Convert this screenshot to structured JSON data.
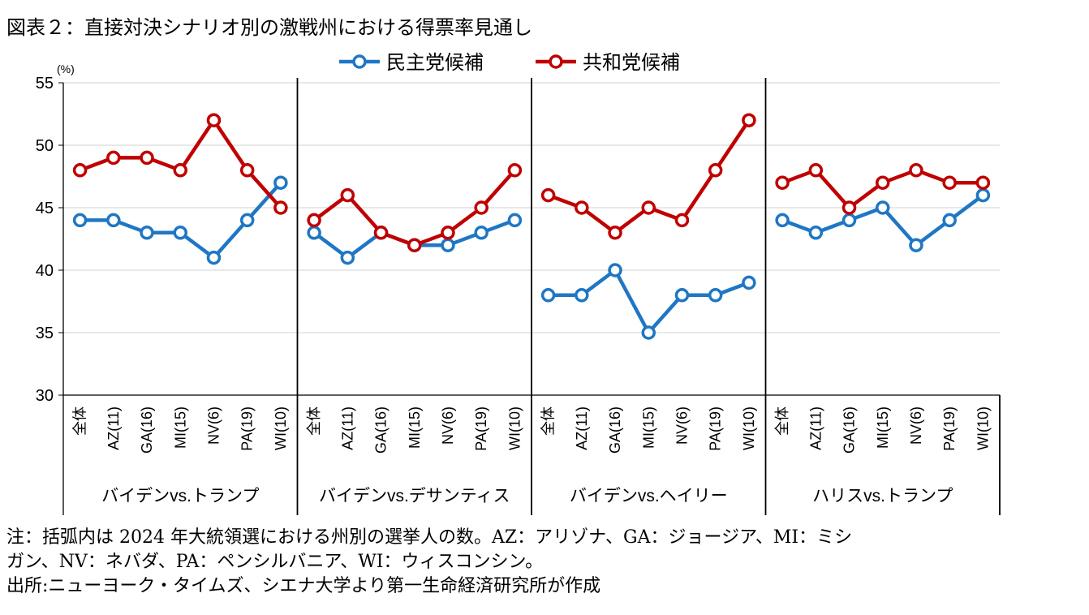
{
  "title": "図表２：直接対決シナリオ別の激戦州における得票率見通し",
  "chart_data": {
    "type": "line",
    "title": "図表２：直接対決シナリオ別の激戦州における得票率見通し",
    "unit_label": "(%)",
    "ylim": [
      30,
      55
    ],
    "yticks": [
      30,
      35,
      40,
      45,
      50,
      55
    ],
    "grid": true,
    "legend_position": "top-center",
    "categories": [
      "全体",
      "AZ(11)",
      "GA(16)",
      "MI(15)",
      "NV(6)",
      "PA(19)",
      "WI(10)"
    ],
    "series_styles": [
      {
        "name": "民主党候補",
        "color": "#1f77c4"
      },
      {
        "name": "共和党候補",
        "color": "#c00000"
      }
    ],
    "panels": [
      {
        "label": "バイデンvs.トランプ",
        "series": [
          {
            "name": "民主党候補",
            "values": [
              44,
              44,
              43,
              43,
              41,
              44,
              47
            ]
          },
          {
            "name": "共和党候補",
            "values": [
              48,
              49,
              49,
              48,
              52,
              48,
              45
            ]
          }
        ]
      },
      {
        "label": "バイデンvs.デサンティス",
        "series": [
          {
            "name": "民主党候補",
            "values": [
              43,
              41,
              43,
              42,
              42,
              43,
              44
            ]
          },
          {
            "name": "共和党候補",
            "values": [
              44,
              46,
              43,
              42,
              43,
              45,
              48
            ]
          }
        ]
      },
      {
        "label": "バイデンvs.ヘイリー",
        "series": [
          {
            "name": "民主党候補",
            "values": [
              38,
              38,
              40,
              35,
              38,
              38,
              39
            ]
          },
          {
            "name": "共和党候補",
            "values": [
              46,
              45,
              43,
              45,
              44,
              48,
              52
            ]
          }
        ]
      },
      {
        "label": "ハリスvs.トランプ",
        "series": [
          {
            "name": "民主党候補",
            "values": [
              44,
              43,
              44,
              45,
              42,
              44,
              46
            ]
          },
          {
            "name": "共和党候補",
            "values": [
              47,
              48,
              45,
              47,
              48,
              47,
              47
            ]
          }
        ]
      }
    ]
  },
  "notes": {
    "line1": "注：括弧内は 2024 年大統領選における州別の選挙人の数。AZ：アリゾナ、GA：ジョージア、MI：ミシ",
    "line2": "ガン、NV：ネバダ、PA：ペンシルバニア、WI：ウィスコンシン。",
    "source": "出所:ニューヨーク・タイムズ、シエナ大学より第一生命経済研究所が作成"
  }
}
